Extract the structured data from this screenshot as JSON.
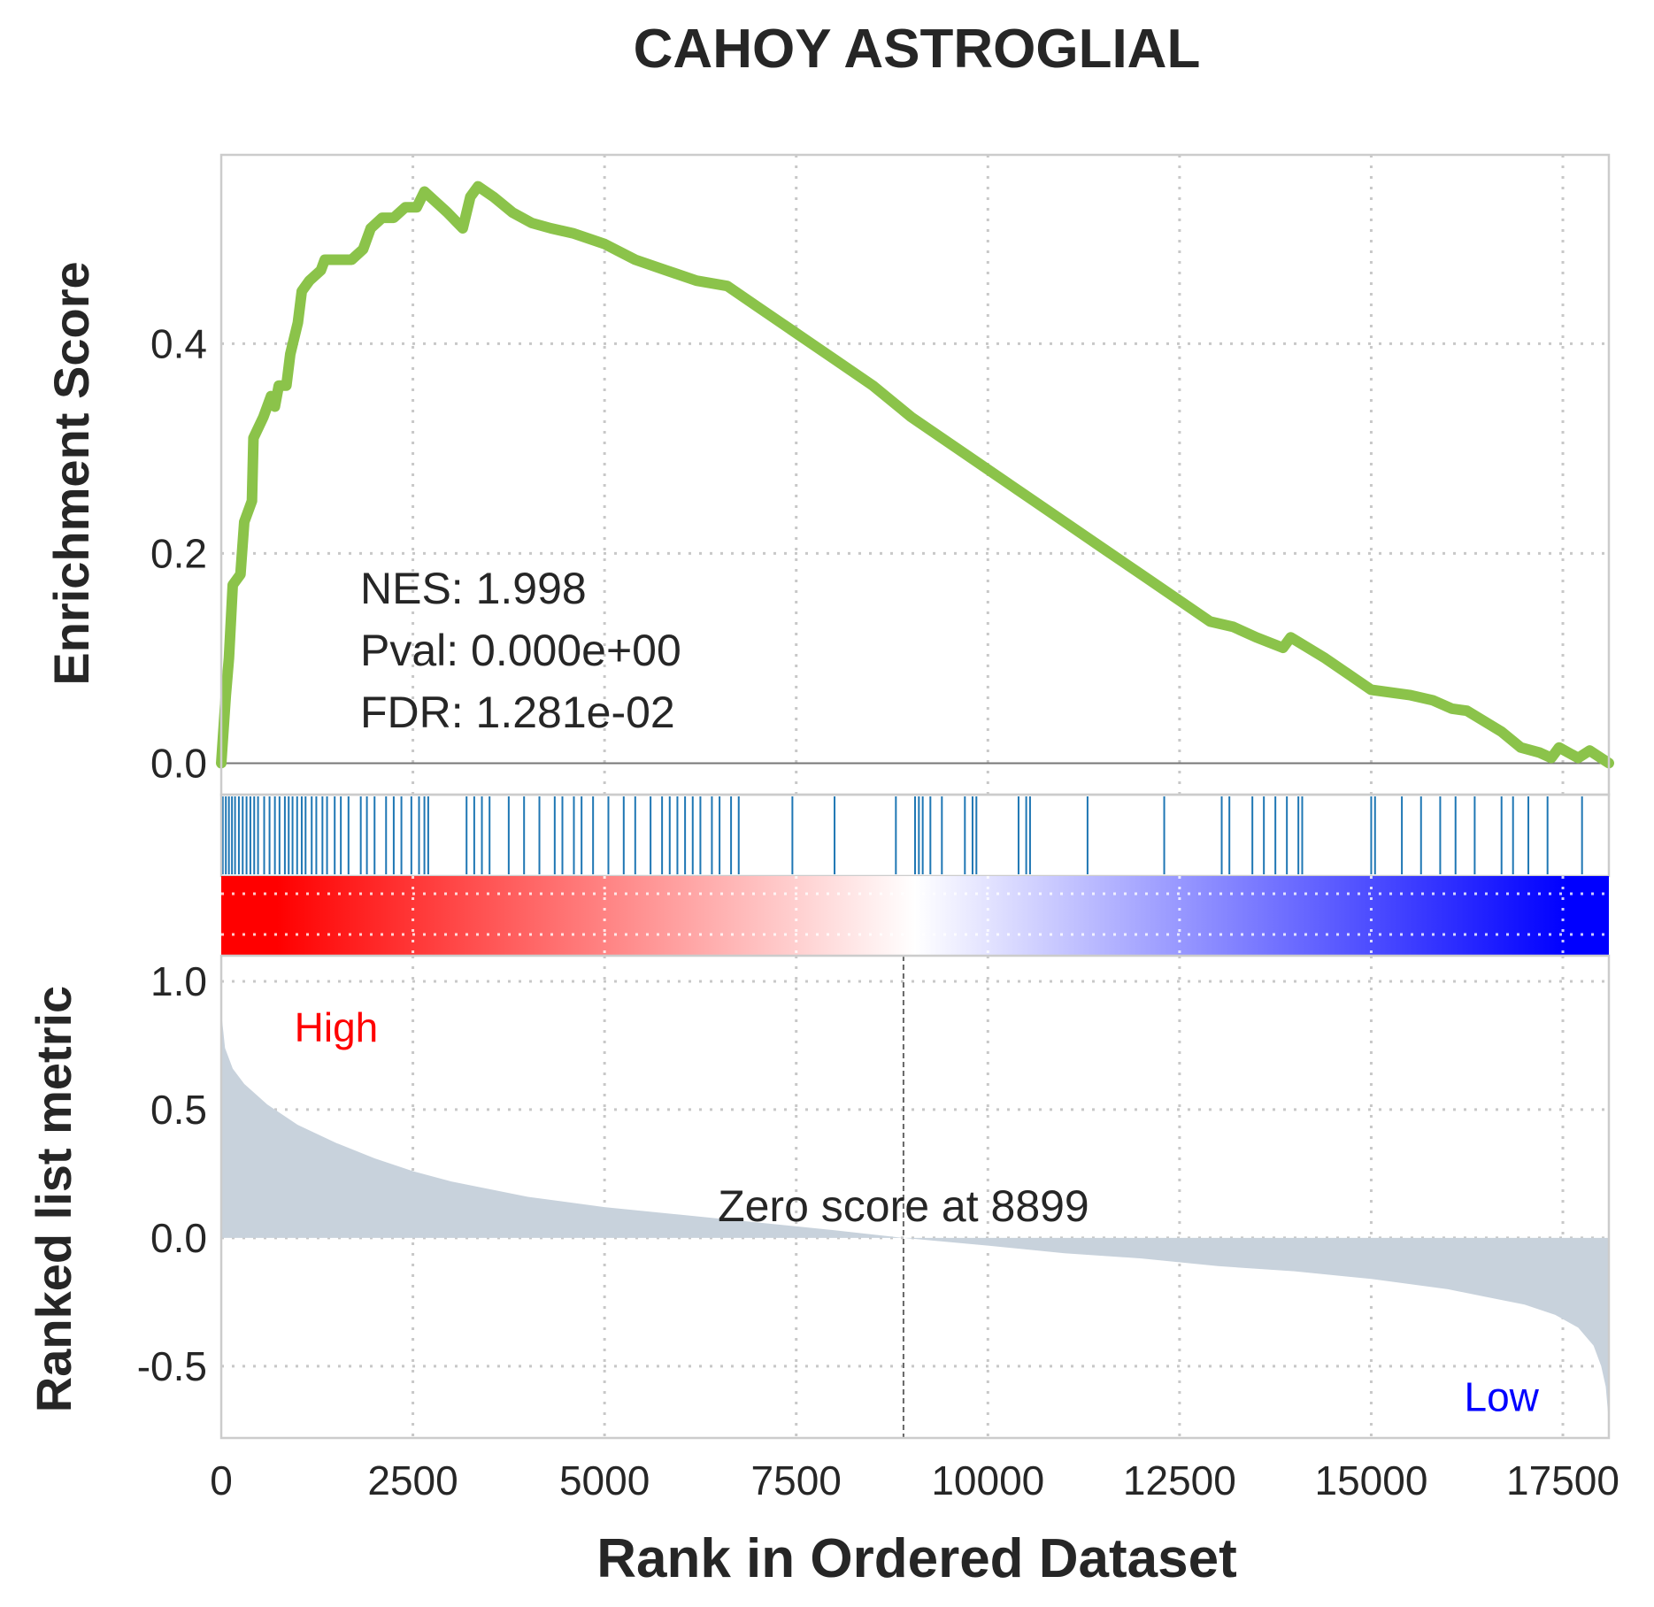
{
  "chart_data": {
    "type": "line",
    "title": "CAHOY ASTROGLIAL",
    "xlabel": "Rank in Ordered Dataset",
    "xlim": [
      0,
      18100
    ],
    "x_ticks": [
      "0",
      "2500",
      "5000",
      "7500",
      "10000",
      "12500",
      "15000",
      "17500"
    ],
    "x_tick_values": [
      0,
      2500,
      5000,
      7500,
      10000,
      12500,
      15000,
      17500
    ],
    "enrichment": {
      "ylabel": "Enrichment Score",
      "ylim": [
        -0.03,
        0.58
      ],
      "y_ticks": [
        "0.0",
        "0.2",
        "0.4"
      ],
      "y_tick_values": [
        0.0,
        0.2,
        0.4
      ],
      "line_color": "#8bc34a",
      "points": [
        [
          0,
          0.0
        ],
        [
          60,
          0.065
        ],
        [
          100,
          0.1
        ],
        [
          150,
          0.17
        ],
        [
          250,
          0.18
        ],
        [
          300,
          0.23
        ],
        [
          400,
          0.25
        ],
        [
          420,
          0.31
        ],
        [
          550,
          0.33
        ],
        [
          650,
          0.35
        ],
        [
          700,
          0.34
        ],
        [
          750,
          0.36
        ],
        [
          850,
          0.36
        ],
        [
          900,
          0.39
        ],
        [
          1000,
          0.42
        ],
        [
          1050,
          0.45
        ],
        [
          1150,
          0.46
        ],
        [
          1300,
          0.47
        ],
        [
          1350,
          0.48
        ],
        [
          1500,
          0.48
        ],
        [
          1600,
          0.48
        ],
        [
          1700,
          0.48
        ],
        [
          1850,
          0.49
        ],
        [
          1950,
          0.51
        ],
        [
          2100,
          0.52
        ],
        [
          2250,
          0.52
        ],
        [
          2400,
          0.53
        ],
        [
          2550,
          0.53
        ],
        [
          2650,
          0.545
        ],
        [
          2800,
          0.535
        ],
        [
          2950,
          0.525
        ],
        [
          3150,
          0.51
        ],
        [
          3250,
          0.54
        ],
        [
          3350,
          0.55
        ],
        [
          3550,
          0.54
        ],
        [
          3800,
          0.525
        ],
        [
          4050,
          0.515
        ],
        [
          4300,
          0.51
        ],
        [
          4600,
          0.505
        ],
        [
          5000,
          0.495
        ],
        [
          5400,
          0.48
        ],
        [
          5800,
          0.47
        ],
        [
          6200,
          0.46
        ],
        [
          6600,
          0.455
        ],
        [
          7000,
          0.435
        ],
        [
          7500,
          0.41
        ],
        [
          8000,
          0.385
        ],
        [
          8500,
          0.36
        ],
        [
          9000,
          0.33
        ],
        [
          9500,
          0.305
        ],
        [
          10000,
          0.28
        ],
        [
          10500,
          0.255
        ],
        [
          11000,
          0.23
        ],
        [
          11500,
          0.205
        ],
        [
          12000,
          0.18
        ],
        [
          12500,
          0.155
        ],
        [
          12900,
          0.135
        ],
        [
          13200,
          0.13
        ],
        [
          13500,
          0.12
        ],
        [
          13850,
          0.11
        ],
        [
          13950,
          0.12
        ],
        [
          14400,
          0.1
        ],
        [
          15000,
          0.07
        ],
        [
          15500,
          0.065
        ],
        [
          15800,
          0.06
        ],
        [
          16050,
          0.052
        ],
        [
          16250,
          0.05
        ],
        [
          16700,
          0.03
        ],
        [
          16950,
          0.015
        ],
        [
          17200,
          0.01
        ],
        [
          17350,
          0.005
        ],
        [
          17450,
          0.015
        ],
        [
          17700,
          0.005
        ],
        [
          17850,
          0.012
        ],
        [
          18100,
          0.0
        ]
      ],
      "annotations": [
        "NES: 1.998",
        "Pval: 0.000e+00",
        "FDR: 1.281e-02"
      ]
    },
    "hits": {
      "color": "#1f77b4",
      "positions": [
        20,
        60,
        100,
        140,
        180,
        230,
        280,
        330,
        380,
        430,
        480,
        560,
        630,
        700,
        760,
        830,
        880,
        930,
        990,
        1050,
        1100,
        1180,
        1240,
        1320,
        1380,
        1480,
        1560,
        1660,
        1820,
        1900,
        2000,
        2150,
        2250,
        2350,
        2480,
        2580,
        2650,
        2700,
        3200,
        3300,
        3400,
        3500,
        3750,
        3950,
        4150,
        4350,
        4450,
        4600,
        4700,
        4850,
        5050,
        5250,
        5400,
        5600,
        5750,
        5850,
        5950,
        6050,
        6150,
        6250,
        6400,
        6500,
        6650,
        6750,
        7450,
        8000,
        8800,
        9050,
        9100,
        9150,
        9250,
        9400,
        9700,
        9800,
        9850,
        10400,
        10500,
        10550,
        11300,
        12300,
        13050,
        13150,
        13450,
        13600,
        13750,
        13900,
        14050,
        14100,
        15000,
        15050,
        15400,
        15650,
        15900,
        16100,
        16350,
        16700,
        16850,
        17050,
        17300,
        17750
      ]
    },
    "colorbar": {
      "colors": [
        "#ff0000",
        "#ffffff",
        "#0000ff"
      ],
      "stops": [
        0.04,
        0.5,
        0.97
      ]
    },
    "ranked": {
      "ylabel": "Ranked list metric",
      "ylim": [
        -0.78,
        1.1
      ],
      "y_ticks": [
        "1.0",
        "0.5",
        "0.0",
        "-0.5"
      ],
      "y_tick_values": [
        1.0,
        0.5,
        0.0,
        -0.5
      ],
      "fill_color": "#c8d2dc",
      "points": [
        [
          0,
          0.88
        ],
        [
          50,
          0.74
        ],
        [
          150,
          0.66
        ],
        [
          300,
          0.6
        ],
        [
          600,
          0.52
        ],
        [
          1000,
          0.44
        ],
        [
          1500,
          0.37
        ],
        [
          2000,
          0.31
        ],
        [
          2500,
          0.26
        ],
        [
          3000,
          0.22
        ],
        [
          4000,
          0.16
        ],
        [
          5000,
          0.12
        ],
        [
          6000,
          0.09
        ],
        [
          7000,
          0.06
        ],
        [
          8000,
          0.03
        ],
        [
          8899,
          0.0
        ],
        [
          10000,
          -0.03
        ],
        [
          11000,
          -0.06
        ],
        [
          12000,
          -0.08
        ],
        [
          13000,
          -0.11
        ],
        [
          14000,
          -0.13
        ],
        [
          15000,
          -0.16
        ],
        [
          16000,
          -0.2
        ],
        [
          16500,
          -0.23
        ],
        [
          17000,
          -0.26
        ],
        [
          17400,
          -0.3
        ],
        [
          17700,
          -0.35
        ],
        [
          17900,
          -0.42
        ],
        [
          18000,
          -0.5
        ],
        [
          18060,
          -0.58
        ],
        [
          18100,
          -0.72
        ]
      ],
      "zero_cross": 8899,
      "zero_label": "Zero score at 8899",
      "high_label": "High",
      "high_color": "#ff0000",
      "low_label": "Low",
      "low_color": "#0000ff"
    }
  }
}
